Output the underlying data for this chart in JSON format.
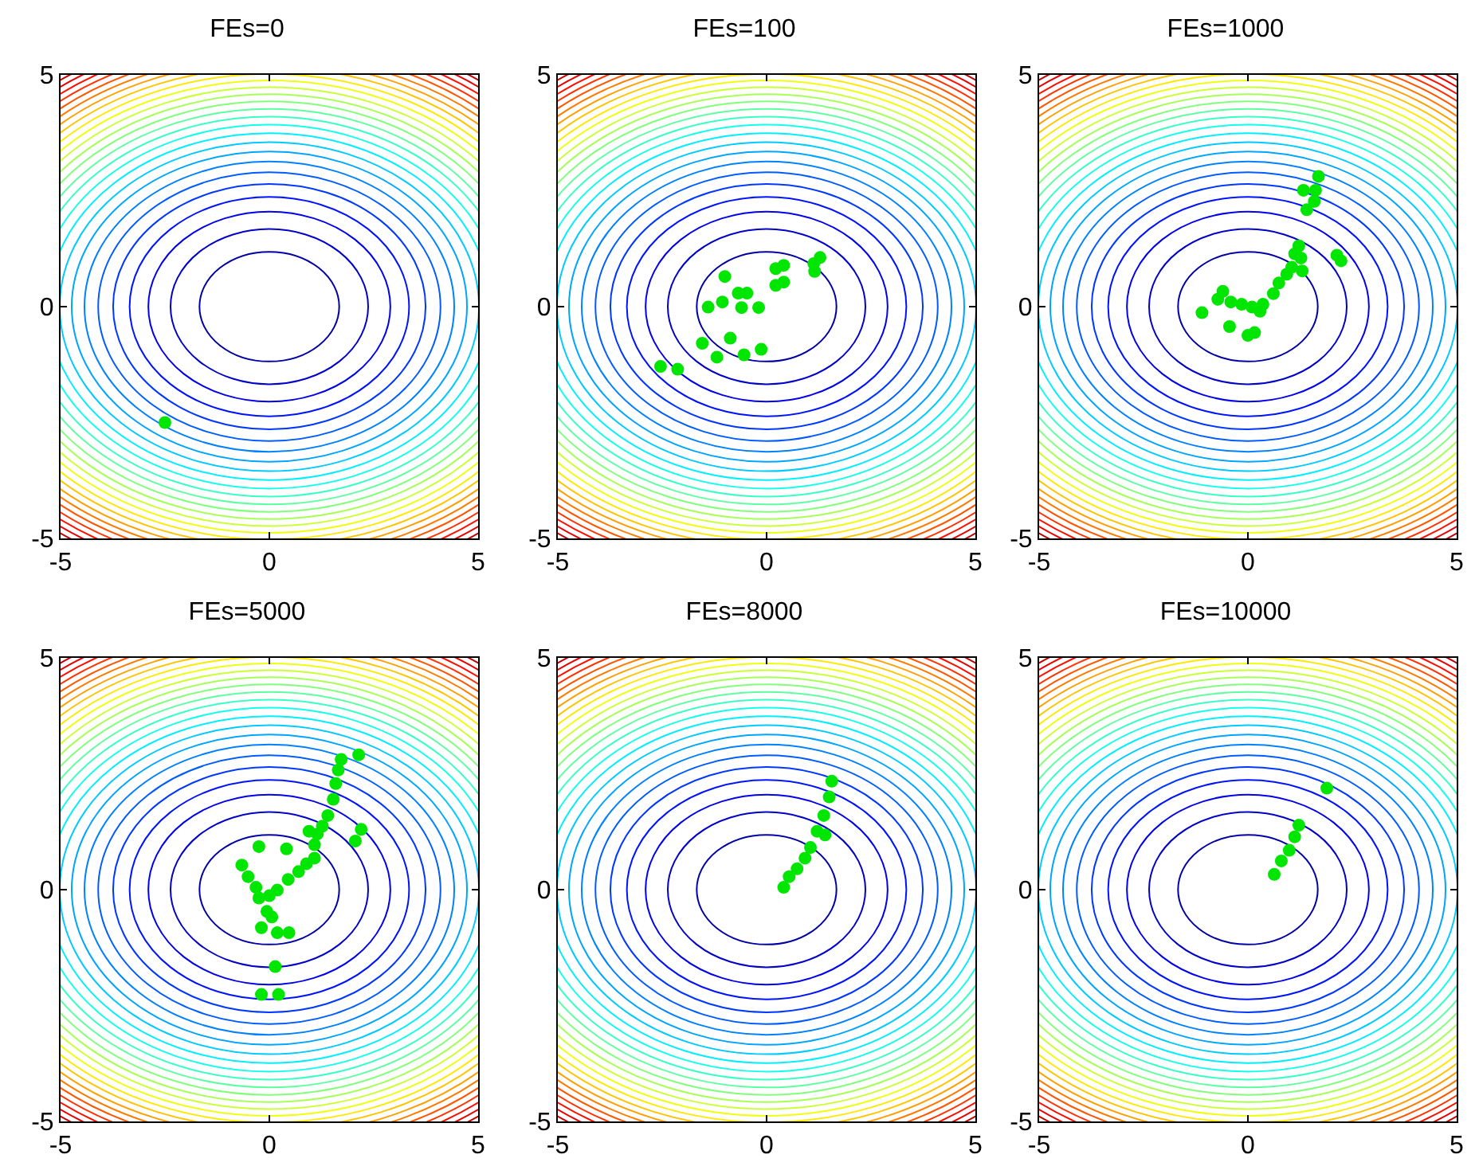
{
  "chart_data": [
    {
      "type": "scatter",
      "title": "FEs=0",
      "xlim": [
        -5,
        5
      ],
      "ylim": [
        -5,
        5
      ],
      "xticks": [
        -5,
        0,
        5
      ],
      "yticks": [
        -5,
        0,
        5
      ],
      "marker": "circle",
      "series": [
        {
          "color": "#00e600",
          "x": [
            -2.5
          ],
          "values": [
            -2.5
          ]
        }
      ]
    },
    {
      "type": "scatter",
      "title": "FEs=100",
      "xlim": [
        -5,
        5
      ],
      "ylim": [
        -5,
        5
      ],
      "xticks": [
        -5,
        0,
        5
      ],
      "yticks": [
        -5,
        0,
        5
      ],
      "marker": "circle",
      "series": [
        {
          "color": "#00e600",
          "x": [
            -1.0,
            -1.06,
            -1.4,
            -0.68,
            -0.47,
            -0.6,
            -0.19,
            0.22,
            0.41,
            0.22,
            0.41,
            1.13,
            1.28,
            1.15,
            -1.54,
            -0.87,
            -1.19,
            -0.54,
            -0.13,
            -2.54,
            -2.13
          ],
          "values": [
            0.65,
            0.1,
            -0.01,
            0.29,
            0.29,
            -0.02,
            -0.02,
            0.82,
            0.89,
            0.46,
            0.53,
            0.93,
            1.06,
            0.76,
            -0.79,
            -0.68,
            -1.09,
            -1.04,
            -0.92,
            -1.29,
            -1.35
          ]
        }
      ]
    },
    {
      "type": "scatter",
      "title": "FEs=1000",
      "xlim": [
        -5,
        5
      ],
      "ylim": [
        -5,
        5
      ],
      "xticks": [
        -5,
        0,
        5
      ],
      "yticks": [
        -5,
        0,
        5
      ],
      "marker": "circle",
      "series": [
        {
          "color": "#00e600",
          "x": [
            1.69,
            1.33,
            1.62,
            1.59,
            1.41,
            2.13,
            2.23,
            1.22,
            1.12,
            1.27,
            1.05,
            1.3,
            0.93,
            0.74,
            0.61,
            0.36,
            0.1,
            -0.15,
            -0.41,
            -0.6,
            -0.72,
            0.29,
            -1.1,
            -0.44,
            0.0,
            0.16
          ],
          "values": [
            2.81,
            2.51,
            2.51,
            2.27,
            2.09,
            1.11,
            0.99,
            1.31,
            1.14,
            1.05,
            0.85,
            0.77,
            0.7,
            0.51,
            0.28,
            0.05,
            -0.01,
            0.05,
            0.1,
            0.33,
            0.16,
            -0.1,
            -0.13,
            -0.43,
            -0.62,
            -0.56
          ]
        }
      ]
    },
    {
      "type": "scatter",
      "title": "FEs=5000",
      "xlim": [
        -5,
        5
      ],
      "ylim": [
        -5,
        5
      ],
      "xticks": [
        -5,
        0,
        5
      ],
      "yticks": [
        -5,
        0,
        5
      ],
      "marker": "circle",
      "series": [
        {
          "color": "#00e600",
          "x": [
            2.14,
            1.72,
            1.65,
            1.59,
            1.53,
            1.4,
            1.27,
            1.15,
            0.95,
            1.08,
            1.08,
            0.89,
            0.7,
            0.45,
            0.19,
            0.0,
            2.2,
            2.06,
            -0.25,
            0.41,
            -0.66,
            -0.51,
            -0.32,
            -0.25,
            -0.06,
            -0.19,
            0.19,
            0.47,
            0.06,
            0.14,
            -0.19,
            0.22
          ],
          "values": [
            2.91,
            2.81,
            2.58,
            2.29,
            1.95,
            1.6,
            1.37,
            1.2,
            1.26,
            0.97,
            0.68,
            0.56,
            0.39,
            0.22,
            -0.01,
            -0.13,
            1.3,
            1.05,
            0.93,
            0.88,
            0.53,
            0.28,
            0.05,
            -0.18,
            -0.47,
            -0.82,
            -0.93,
            -0.93,
            -0.59,
            -1.66,
            -2.26,
            -2.26
          ]
        }
      ]
    },
    {
      "type": "scatter",
      "title": "FEs=8000",
      "xlim": [
        -5,
        5
      ],
      "ylim": [
        -5,
        5
      ],
      "xticks": [
        -5,
        0,
        5
      ],
      "yticks": [
        -5,
        0,
        5
      ],
      "marker": "circle",
      "series": [
        {
          "color": "#00e600",
          "x": [
            1.56,
            1.5,
            1.37,
            1.4,
            1.21,
            1.05,
            0.92,
            0.73,
            0.54,
            0.41
          ],
          "values": [
            2.34,
            2.0,
            1.6,
            1.18,
            1.26,
            0.91,
            0.68,
            0.45,
            0.28,
            0.05
          ]
        }
      ]
    },
    {
      "type": "scatter",
      "title": "FEs=10000",
      "xlim": [
        -5,
        5
      ],
      "ylim": [
        -5,
        5
      ],
      "xticks": [
        -5,
        0,
        5
      ],
      "yticks": [
        -5,
        0,
        5
      ],
      "marker": "circle",
      "series": [
        {
          "color": "#00e600",
          "x": [
            1.89,
            1.22,
            1.12,
            0.99,
            0.8,
            0.63
          ],
          "values": [
            2.19,
            1.39,
            1.14,
            0.85,
            0.62,
            0.33
          ]
        }
      ]
    }
  ]
}
